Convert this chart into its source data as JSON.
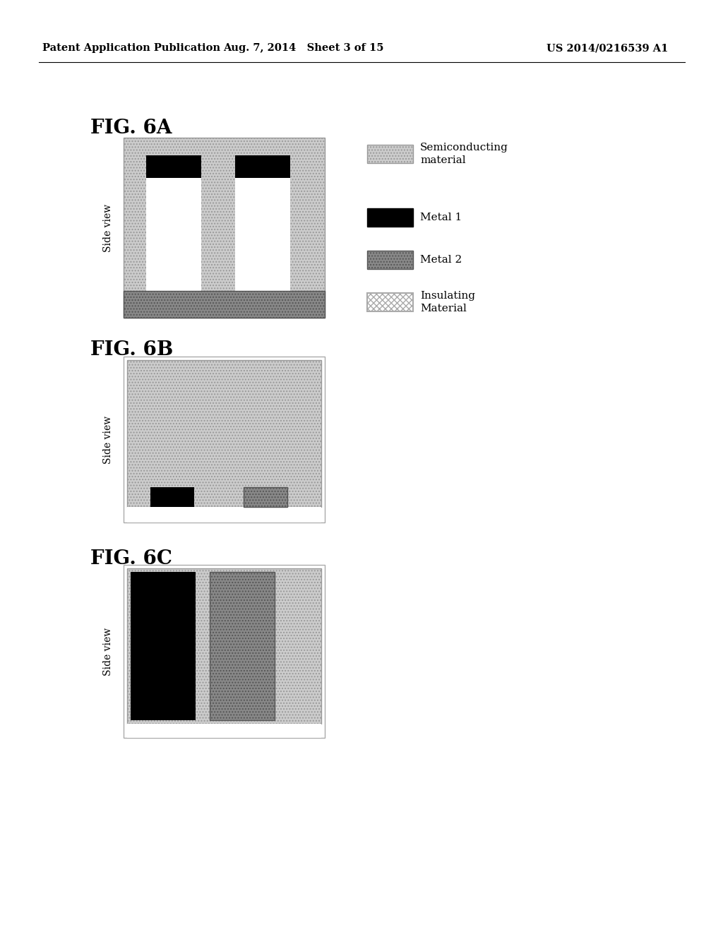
{
  "header_left": "Patent Application Publication",
  "header_center": "Aug. 7, 2014   Sheet 3 of 15",
  "header_right": "US 2014/0216539 A1",
  "fig6a_label": "FIG. 6A",
  "fig6b_label": "FIG. 6B",
  "fig6c_label": "FIG. 6C",
  "side_view_text": "Side view",
  "background_color": "#ffffff",
  "text_color": "#000000",
  "semi_fc": "#cccccc",
  "semi_hatch": "....",
  "semi_ec": "#999999",
  "metal1_fc": "#000000",
  "metal2_fc": "#888888",
  "metal2_hatch": "....",
  "metal2_ec": "#555555",
  "insul_fc": "#ffffff",
  "insul_ec": "#aaaaaa",
  "insul_hatch": "xxxx"
}
